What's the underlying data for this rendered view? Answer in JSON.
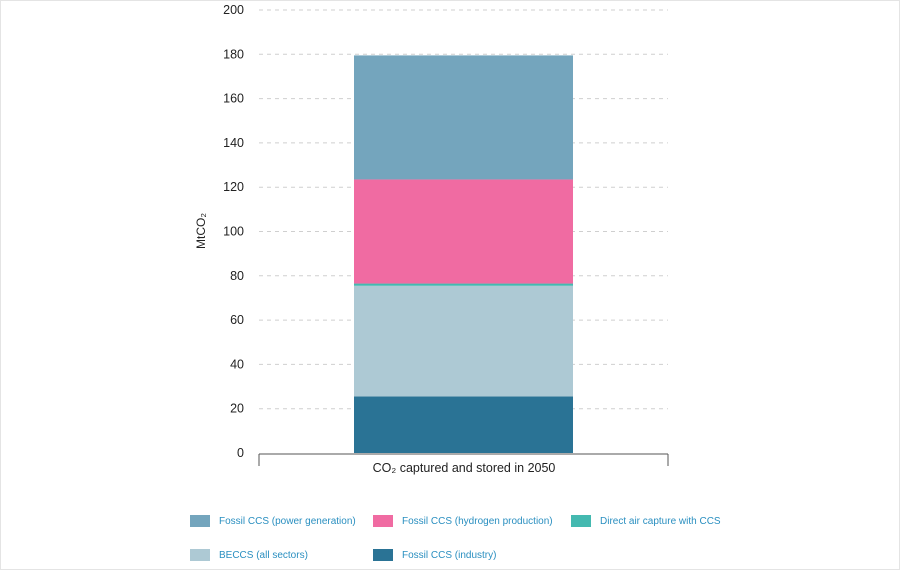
{
  "chart_data": {
    "type": "bar",
    "stacked": true,
    "categories": [
      "CO₂ captured and stored in 2050"
    ],
    "ylabel": "MtCO₂",
    "ylim": [
      0,
      200
    ],
    "yticks": [
      0,
      20,
      40,
      60,
      80,
      100,
      120,
      140,
      160,
      180,
      200
    ],
    "grid": true,
    "legend_position": "bottom",
    "series": [
      {
        "name": "Fossil CCS (industry)",
        "color": "#2a7395",
        "values": [
          25.5
        ]
      },
      {
        "name": "BECCS (all sectors)",
        "color": "#adc9d4",
        "values": [
          50
        ]
      },
      {
        "name": "Direct air capture with CCS",
        "color": "#44b9b0",
        "values": [
          1
        ]
      },
      {
        "name": "Fossil CCS (hydrogen production)",
        "color": "#f06ba2",
        "values": [
          47
        ]
      },
      {
        "name": "Fossil CCS (power generation)",
        "color": "#74a5bd",
        "values": [
          56
        ]
      }
    ],
    "legend_order": [
      "Fossil CCS (power generation)",
      "Fossil CCS (hydrogen production)",
      "Direct air capture with CCS",
      "BECCS (all sectors)",
      "Fossil CCS (industry)"
    ]
  }
}
